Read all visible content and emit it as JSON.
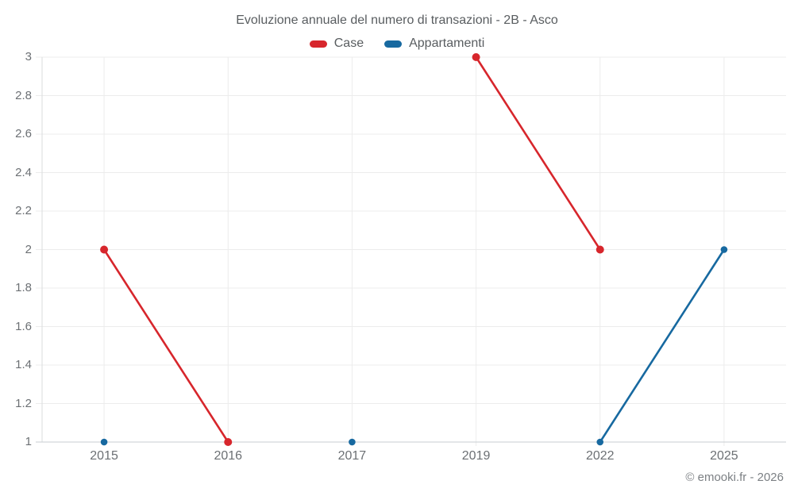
{
  "title": "Evoluzione annuale del numero di transazioni - 2B - Asco",
  "footer": "© emooki.fr - 2026",
  "colors": {
    "grid": "#ececec",
    "baseline": "#c9ced2",
    "axis_line": "#dadcde",
    "title_text": "#595d60",
    "tick_text": "#6c7074",
    "footer_text": "#7c8084",
    "case_red": "#d7262c",
    "appartamenti_blue": "#1769a0",
    "background": "#ffffff"
  },
  "chart_data": {
    "type": "line",
    "title": "Evoluzione annuale del numero di transazioni - 2B - Asco",
    "xlabel": "",
    "ylabel": "",
    "categories": [
      "2015",
      "2016",
      "2017",
      "2019",
      "2022",
      "2025"
    ],
    "series": [
      {
        "name": "Case",
        "color": "#d7262c",
        "values": [
          2,
          1,
          null,
          3,
          2,
          null
        ]
      },
      {
        "name": "Appartamenti",
        "color": "#1769a0",
        "values": [
          1,
          null,
          1,
          null,
          1,
          2
        ]
      }
    ],
    "ylim": [
      1,
      3
    ],
    "y_ticks": [
      1,
      1.2,
      1.4,
      1.6,
      1.8,
      2,
      2.2,
      2.4,
      2.6,
      2.8,
      3
    ],
    "y_tick_labels": [
      "1",
      "1.2",
      "1.4",
      "1.6",
      "1.8",
      "2",
      "2.2",
      "2.4",
      "2.6",
      "2.8",
      "3"
    ],
    "grid": true,
    "legend_position": "top",
    "legend": [
      "Case",
      "Appartamenti"
    ]
  }
}
